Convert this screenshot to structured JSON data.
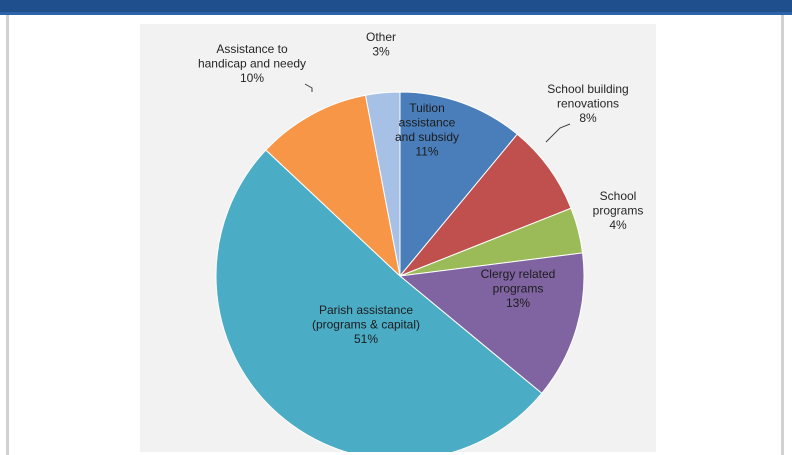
{
  "chart_data": {
    "type": "pie",
    "slices": [
      {
        "label_lines": [
          "Tuition",
          "assistance",
          "and subsidy"
        ],
        "value_text": "11%",
        "value": 11,
        "color": "#4a7ebb"
      },
      {
        "label_lines": [
          "School building",
          "renovations"
        ],
        "value_text": "8%",
        "value": 8,
        "color": "#c0504d"
      },
      {
        "label_lines": [
          "School",
          "programs"
        ],
        "value_text": "4%",
        "value": 4,
        "color": "#9bbb59"
      },
      {
        "label_lines": [
          "Clergy related",
          "programs"
        ],
        "value_text": "13%",
        "value": 13,
        "color": "#8064a2"
      },
      {
        "label_lines": [
          "Parish assistance",
          "(programs & capital)"
        ],
        "value_text": "51%",
        "value": 51,
        "color": "#4bacc6"
      },
      {
        "label_lines": [
          "Assistance to",
          "handicap and needy"
        ],
        "value_text": "10%",
        "value": 10,
        "color": "#f79646"
      },
      {
        "label_lines": [
          "Other"
        ],
        "value_text": "3%",
        "value": 3,
        "color": "#a6c0e6"
      }
    ]
  }
}
